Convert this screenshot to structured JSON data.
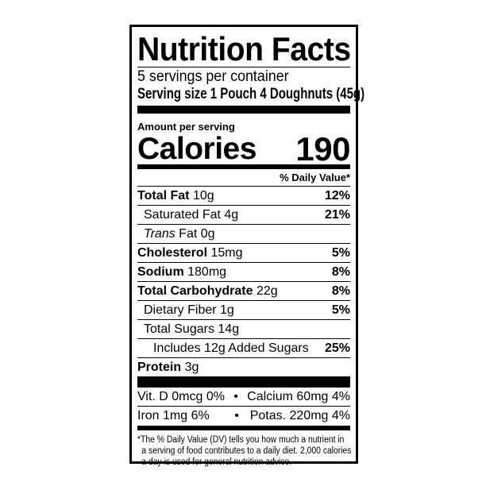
{
  "title": "Nutrition Facts",
  "servings_per_container": "5 servings per container",
  "serving_size_label": "Serving size",
  "serving_size_value": "1 Pouch 4 Doughnuts (45g)",
  "amount_per_serving": "Amount per serving",
  "calories_label": "Calories",
  "calories_value": "190",
  "daily_value_header": "% Daily Value*",
  "nutrients": [
    {
      "name": "Total Fat",
      "amount": "10g",
      "dv": "12%"
    },
    {
      "name": "Saturated Fat",
      "amount": "4g",
      "dv": "21%"
    },
    {
      "name": "Trans",
      "amount": "Fat 0g",
      "dv": ""
    },
    {
      "name": "Cholesterol",
      "amount": "15mg",
      "dv": "5%"
    },
    {
      "name": "Sodium",
      "amount": "180mg",
      "dv": "8%"
    },
    {
      "name": "Total Carbohydrate",
      "amount": "22g",
      "dv": "8%"
    },
    {
      "name": "Dietary Fiber",
      "amount": "1g",
      "dv": "5%"
    },
    {
      "name": "Total Sugars",
      "amount": "14g",
      "dv": ""
    },
    {
      "name": "Includes 12g Added Sugars",
      "amount": "",
      "dv": "25%"
    },
    {
      "name": "Protein",
      "amount": "3g",
      "dv": ""
    }
  ],
  "vitamins": [
    {
      "left": "Vit. D 0mcg 0%",
      "right": "Calcium 60mg 4%"
    },
    {
      "left": "Iron 1mg 6%",
      "right": "Potas. 220mg 4%"
    }
  ],
  "bullet": "•",
  "footnote": [
    "*The % Daily Value (DV) tells you how much a nutrient in",
    "a serving of food contributes to a daily diet. 2,000 calories",
    "a day is used for general nutrition advice."
  ]
}
